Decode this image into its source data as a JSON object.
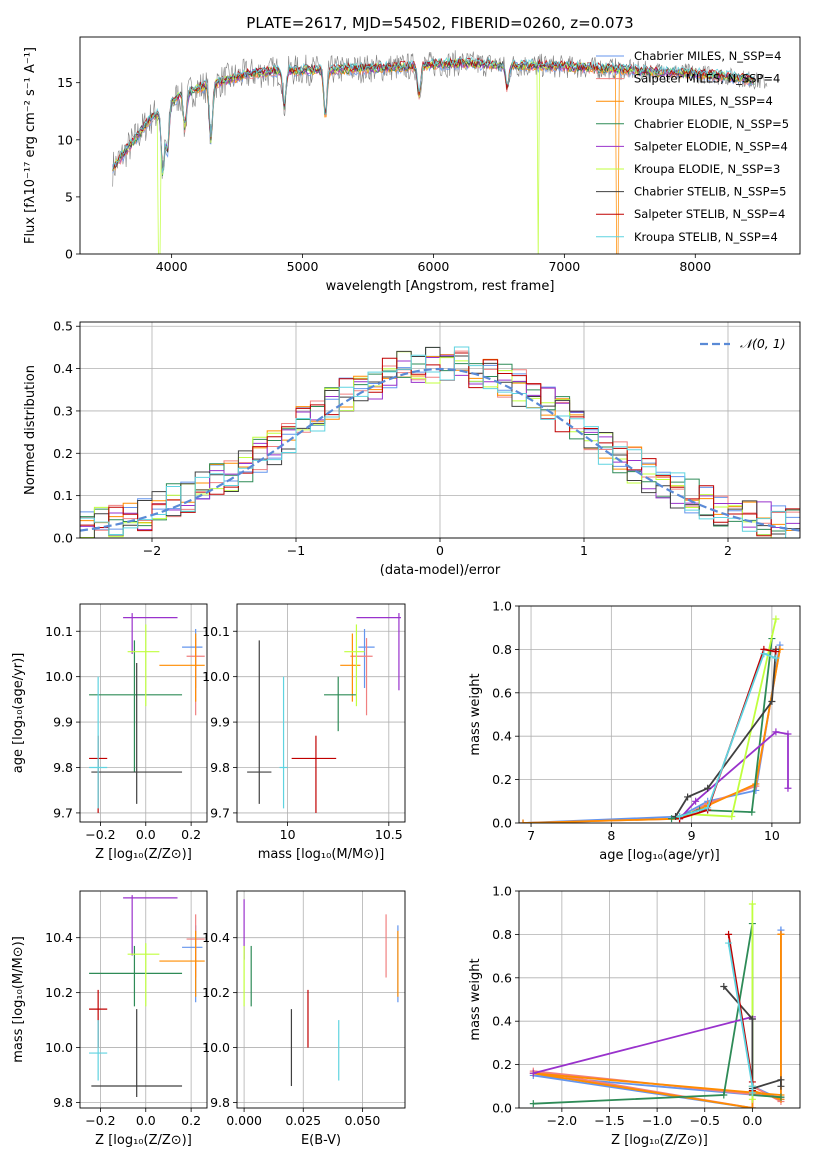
{
  "title": "PLATE=2617, MJD=54502, FIBERID=0260, z=0.073",
  "colors": {
    "chabrier_miles": "#6495ed",
    "salpeter_miles": "#f08080",
    "kroupa_miles": "#ff8c00",
    "chabrier_elodie": "#2e8b57",
    "salpeter_elodie": "#9932cc",
    "kroupa_elodie": "#c0ff3e",
    "chabrier_stelib": "#404040",
    "salpeter_stelib": "#c00000",
    "kroupa_stelib": "#5fd3e0",
    "data": "#808080"
  },
  "chart_data": [
    {
      "id": "spectrum",
      "type": "line",
      "title": "PLATE=2617, MJD=54502, FIBERID=0260, z=0.073",
      "xlabel": "wavelength [Angstrom, rest frame]",
      "ylabel": "Flux [fλ10⁻¹⁷ erg cm⁻² s⁻¹ A⁻¹]",
      "xlim": [
        3300,
        8800
      ],
      "ylim": [
        0,
        19
      ],
      "xticks": [
        4000,
        5000,
        6000,
        7000,
        8000
      ],
      "yticks": [
        0,
        5,
        10,
        15
      ],
      "legend_position": "top-right",
      "legend": [
        "Chabrier MILES, N_SSP=4",
        "Salpeter MILES, N_SSP=4",
        "Kroupa MILES, N_SSP=4",
        "Chabrier ELODIE, N_SSP=5",
        "Salpeter ELODIE, N_SSP=4",
        "Kroupa ELODIE, N_SSP=3",
        "Chabrier STELIB, N_SSP=5",
        "Salpeter STELIB, N_SSP=4",
        "Kroupa STELIB, N_SSP=4"
      ],
      "continuum": {
        "x": [
          3550,
          3650,
          3750,
          3850,
          3950,
          4050,
          4200,
          4400,
          4600,
          4800,
          5000,
          5200,
          5400,
          5600,
          5800,
          6000,
          6200,
          6400,
          6600,
          6800,
          7000,
          7200,
          7400,
          7600,
          7800,
          8000,
          8200,
          8400,
          8550
        ],
        "y": [
          7.5,
          9,
          10.5,
          12,
          12.8,
          13.8,
          14.5,
          15.2,
          15.8,
          16,
          16.1,
          16.1,
          16.2,
          16.3,
          16.4,
          16.6,
          16.7,
          16.6,
          16.5,
          16.5,
          16.4,
          16.3,
          16.2,
          16,
          15.9,
          15.8,
          15.6,
          15.3,
          15
        ]
      },
      "dips": [
        {
          "x": 3933,
          "y": 7
        },
        {
          "x": 3968,
          "y": 9
        },
        {
          "x": 4102,
          "y": 11
        },
        {
          "x": 4300,
          "y": 10
        },
        {
          "x": 4861,
          "y": 13
        },
        {
          "x": 5175,
          "y": 12
        },
        {
          "x": 5890,
          "y": 14
        },
        {
          "x": 6563,
          "y": 14.5
        }
      ],
      "drops": [
        {
          "x": 3905,
          "series": "kroupa_elodie"
        },
        {
          "x": 6800,
          "series": "kroupa_elodie"
        },
        {
          "x": 7405,
          "series": "kroupa_miles"
        }
      ]
    },
    {
      "id": "residuals",
      "type": "histogram",
      "xlabel": "(data-model)/error",
      "ylabel": "Normed distribution",
      "xlim": [
        -2.5,
        2.5
      ],
      "ylim": [
        0,
        0.51
      ],
      "xticks": [
        -2,
        -1,
        0,
        1,
        2
      ],
      "yticks": [
        0.0,
        0.1,
        0.2,
        0.3,
        0.4,
        0.5
      ],
      "bin_width": 0.1,
      "legend": [
        "𝒩(0, 1)"
      ],
      "legend_position": "top-right",
      "gaussian": {
        "mean": 0,
        "sigma": 1
      }
    },
    {
      "id": "age_vs_Z",
      "type": "errorbar",
      "xlabel": "Z [log₁₀(Z/Z⊙)]",
      "ylabel": "age  [log₁₀(age/yr)]",
      "xlim": [
        -0.29,
        0.27
      ],
      "ylim": [
        9.68,
        10.16
      ],
      "xticks": [
        -0.2,
        0.0,
        0.2
      ],
      "xtick_labels": [
        "−0.2",
        "0.0",
        "0.2"
      ],
      "yticks": [
        9.7,
        9.8,
        9.9,
        10.0,
        10.1
      ],
      "points": [
        {
          "series": "chabrier_miles",
          "x": 0.22,
          "xerr": [
            0.06,
            0.03
          ],
          "y": 10.065,
          "yerr": [
            0.09,
            0.04
          ]
        },
        {
          "series": "salpeter_miles",
          "x": 0.22,
          "xerr": [
            0.04,
            0.04
          ],
          "y": 10.045,
          "yerr": [
            0.13,
            0.04
          ]
        },
        {
          "series": "kroupa_miles",
          "x": 0.22,
          "xerr": [
            0.16,
            0.04
          ],
          "y": 10.025,
          "yerr": [
            0.08,
            0.07
          ]
        },
        {
          "series": "chabrier_elodie",
          "x": -0.05,
          "xerr": [
            0.2,
            0.21
          ],
          "y": 9.96,
          "yerr": [
            0.17,
            0.12
          ]
        },
        {
          "series": "salpeter_elodie",
          "x": -0.06,
          "xerr": [
            0.04,
            0.2
          ],
          "y": 10.13,
          "yerr": [
            0.08,
            0.01
          ]
        },
        {
          "series": "kroupa_elodie",
          "x": 0.0,
          "xerr": [
            0.08,
            0.06
          ],
          "y": 10.055,
          "yerr": [
            0.12,
            0.06
          ]
        },
        {
          "series": "chabrier_stelib",
          "x": -0.04,
          "xerr": [
            0.2,
            0.2
          ],
          "y": 9.79,
          "yerr": [
            0.07,
            0.24
          ]
        },
        {
          "series": "salpeter_stelib",
          "x": -0.21,
          "xerr": [
            0.04,
            0.04
          ],
          "y": 9.82,
          "yerr": [
            0.12,
            0.05
          ]
        },
        {
          "series": "kroupa_stelib",
          "x": -0.21,
          "xerr": [
            0.04,
            0.04
          ],
          "y": 9.8,
          "yerr": [
            0.09,
            0.2
          ]
        }
      ]
    },
    {
      "id": "age_vs_mass",
      "type": "errorbar",
      "xlabel": "mass [log₁₀(M/M⊙)]",
      "xlim": [
        9.75,
        10.58
      ],
      "ylim": [
        9.68,
        10.16
      ],
      "xticks": [
        10.0,
        10.5
      ],
      "yticks": [
        9.7,
        9.8,
        9.9,
        10.0,
        10.1
      ],
      "points": [
        {
          "series": "chabrier_miles",
          "x": 10.38,
          "xerr": [
            0.03,
            0.05
          ],
          "y": 10.065,
          "yerr": [
            0.09,
            0.04
          ]
        },
        {
          "series": "salpeter_miles",
          "x": 10.39,
          "xerr": [
            0.08,
            0.03
          ],
          "y": 10.045,
          "yerr": [
            0.13,
            0.04
          ]
        },
        {
          "series": "kroupa_miles",
          "x": 10.32,
          "xerr": [
            0.06,
            0.04
          ],
          "y": 10.025,
          "yerr": [
            0.08,
            0.07
          ]
        },
        {
          "series": "chabrier_elodie",
          "x": 10.25,
          "xerr": [
            0.07,
            0.09
          ],
          "y": 9.96,
          "yerr": [
            0.08,
            0.04
          ]
        },
        {
          "series": "salpeter_elodie",
          "x": 10.55,
          "xerr": [
            0.21,
            0.01
          ],
          "y": 10.13,
          "yerr": [
            0.16,
            0.01
          ]
        },
        {
          "series": "kroupa_elodie",
          "x": 10.34,
          "xerr": [
            0.06,
            0.04
          ],
          "y": 10.055,
          "yerr": [
            0.12,
            0.06
          ]
        },
        {
          "series": "chabrier_stelib",
          "x": 9.86,
          "xerr": [
            0.06,
            0.06
          ],
          "y": 9.79,
          "yerr": [
            0.07,
            0.29
          ]
        },
        {
          "series": "salpeter_stelib",
          "x": 10.14,
          "xerr": [
            0.12,
            0.1
          ],
          "y": 9.82,
          "yerr": [
            0.12,
            0.05
          ]
        },
        {
          "series": "kroupa_stelib",
          "x": 9.98,
          "xerr": [
            0.02,
            0.02
          ],
          "y": 9.8,
          "yerr": [
            0.09,
            0.2
          ]
        }
      ]
    },
    {
      "id": "weight_vs_age",
      "type": "line",
      "xlabel": "age  [log₁₀(age/yr)]",
      "ylabel": "mass weight",
      "xlim": [
        6.85,
        10.35
      ],
      "ylim": [
        0,
        1
      ],
      "xticks": [
        7,
        8,
        9,
        10
      ],
      "yticks": [
        0.0,
        0.2,
        0.4,
        0.6,
        0.8,
        1.0
      ],
      "series": [
        {
          "name": "chabrier_miles",
          "x": [
            6.9,
            8.85,
            9.2,
            9.8,
            10.1
          ],
          "y": [
            0.0,
            0.03,
            0.1,
            0.15,
            0.82
          ]
        },
        {
          "name": "salpeter_miles",
          "x": [
            6.9,
            8.85,
            9.2,
            9.8,
            10.1
          ],
          "y": [
            0.0,
            0.02,
            0.09,
            0.17,
            0.8
          ]
        },
        {
          "name": "kroupa_miles",
          "x": [
            6.9,
            8.85,
            9.2,
            9.8,
            10.1
          ],
          "y": [
            0.0,
            0.02,
            0.08,
            0.18,
            0.8
          ]
        },
        {
          "name": "chabrier_elodie",
          "x": [
            8.75,
            9.1,
            9.75,
            10.0
          ],
          "y": [
            0.02,
            0.06,
            0.05,
            0.85
          ]
        },
        {
          "name": "salpeter_elodie",
          "x": [
            8.85,
            9.05,
            10.05,
            10.2,
            10.2
          ],
          "y": [
            0.02,
            0.1,
            0.42,
            0.41,
            0.16
          ]
        },
        {
          "name": "kroupa_elodie",
          "x": [
            9.0,
            9.5,
            10.05
          ],
          "y": [
            0.04,
            0.03,
            0.94
          ]
        },
        {
          "name": "chabrier_stelib",
          "x": [
            8.8,
            8.95,
            9.2,
            10.0,
            10.05
          ],
          "y": [
            0.03,
            0.12,
            0.16,
            0.56,
            0.8
          ]
        },
        {
          "name": "salpeter_stelib",
          "x": [
            8.85,
            9.2,
            9.9,
            10.05
          ],
          "y": [
            0.02,
            0.06,
            0.8,
            0.79
          ]
        },
        {
          "name": "kroupa_stelib",
          "x": [
            8.85,
            9.2,
            9.9,
            10.05
          ],
          "y": [
            0.03,
            0.07,
            0.78,
            0.76
          ]
        }
      ]
    },
    {
      "id": "mass_vs_Z",
      "type": "errorbar",
      "xlabel": "Z [log₁₀(Z/Z⊙)]",
      "ylabel": "mass [log₁₀(M/M⊙)]",
      "xlim": [
        -0.29,
        0.27
      ],
      "ylim": [
        9.78,
        10.57
      ],
      "xticks": [
        -0.2,
        0.0,
        0.2
      ],
      "xtick_labels": [
        "−0.2",
        "0.0",
        "0.2"
      ],
      "yticks": [
        9.8,
        10.0,
        10.2,
        10.4
      ],
      "points": [
        {
          "series": "chabrier_miles",
          "x": 0.22,
          "xerr": [
            0.06,
            0.03
          ],
          "y": 10.365,
          "yerr": [
            0.2,
            0.08
          ]
        },
        {
          "series": "salpeter_miles",
          "x": 0.22,
          "xerr": [
            0.04,
            0.04
          ],
          "y": 10.395,
          "yerr": [
            0.14,
            0.09
          ]
        },
        {
          "series": "kroupa_miles",
          "x": 0.22,
          "xerr": [
            0.16,
            0.04
          ],
          "y": 10.315,
          "yerr": [
            0.13,
            0.11
          ]
        },
        {
          "series": "chabrier_elodie",
          "x": -0.05,
          "xerr": [
            0.2,
            0.21
          ],
          "y": 10.27,
          "yerr": [
            0.12,
            0.1
          ]
        },
        {
          "series": "salpeter_elodie",
          "x": -0.06,
          "xerr": [
            0.04,
            0.2
          ],
          "y": 10.545,
          "yerr": [
            0.21,
            0.01
          ]
        },
        {
          "series": "kroupa_elodie",
          "x": 0.0,
          "xerr": [
            0.08,
            0.06
          ],
          "y": 10.34,
          "yerr": [
            0.19,
            0.04
          ]
        },
        {
          "series": "chabrier_stelib",
          "x": -0.04,
          "xerr": [
            0.2,
            0.2
          ],
          "y": 9.86,
          "yerr": [
            0.04,
            0.28
          ]
        },
        {
          "series": "salpeter_stelib",
          "x": -0.21,
          "xerr": [
            0.04,
            0.04
          ],
          "y": 10.14,
          "yerr": [
            0.14,
            0.07
          ]
        },
        {
          "series": "kroupa_stelib",
          "x": -0.21,
          "xerr": [
            0.04,
            0.04
          ],
          "y": 9.98,
          "yerr": [
            0.1,
            0.12
          ]
        }
      ]
    },
    {
      "id": "mass_vs_ebv",
      "type": "errorbar",
      "xlabel": "E(B-V)",
      "xlim": [
        -0.003,
        0.068
      ],
      "ylim": [
        9.78,
        10.57
      ],
      "xticks": [
        0.0,
        0.025,
        0.05
      ],
      "xtick_labels": [
        "0.000",
        "0.025",
        "0.050"
      ],
      "yticks": [
        9.8,
        10.0,
        10.2,
        10.4
      ],
      "points": [
        {
          "series": "chabrier_miles",
          "x": 0.065,
          "yerr": [
            0.2,
            0.08
          ],
          "y": 10.365
        },
        {
          "series": "salpeter_miles",
          "x": 0.06,
          "yerr": [
            0.14,
            0.09
          ],
          "y": 10.395
        },
        {
          "series": "kroupa_miles",
          "x": 0.065,
          "yerr": [
            0.13,
            0.11
          ],
          "y": 10.315
        },
        {
          "series": "chabrier_elodie",
          "x": 0.003,
          "yerr": [
            0.12,
            0.1
          ],
          "y": 10.27
        },
        {
          "series": "salpeter_elodie",
          "x": 0.0,
          "yerr": [
            0.15,
            0.07
          ],
          "y": 10.47
        },
        {
          "series": "kroupa_elodie",
          "x": 0.0,
          "yerr": [
            0.12,
            0.1
          ],
          "y": 10.27
        },
        {
          "series": "chabrier_stelib",
          "x": 0.02,
          "yerr": [
            0.14,
            0.14
          ],
          "y": 10.0
        },
        {
          "series": "salpeter_stelib",
          "x": 0.027,
          "yerr": [
            0.14,
            0.07
          ],
          "y": 10.14
        },
        {
          "series": "kroupa_stelib",
          "x": 0.04,
          "yerr": [
            0.1,
            0.12
          ],
          "y": 9.98
        }
      ]
    },
    {
      "id": "weight_vs_Z",
      "type": "line",
      "xlabel": "Z [log₁₀(Z/Z⊙)]",
      "ylabel": "mass weight",
      "xlim": [
        -2.45,
        0.5
      ],
      "ylim": [
        0,
        1
      ],
      "xticks": [
        -2.0,
        -1.5,
        -1.0,
        -0.5,
        0.0
      ],
      "xtick_labels": [
        "−2.0",
        "−1.5",
        "−1.0",
        "−0.5",
        "0.0"
      ],
      "yticks": [
        0.0,
        0.2,
        0.4,
        0.6,
        0.8,
        1.0
      ],
      "series": [
        {
          "name": "chabrier_miles",
          "x": [
            0.3,
            0.3,
            -2.3,
            0.0,
            0.0,
            0.3,
            0.3
          ],
          "y": [
            0.82,
            0.05,
            0.15,
            0.0,
            0.1,
            0.04,
            0.82
          ]
        },
        {
          "name": "salpeter_miles",
          "x": [
            0.3,
            0.3,
            -2.3,
            0.0,
            0.0,
            0.3,
            0.3
          ],
          "y": [
            0.8,
            0.05,
            0.17,
            0.0,
            0.1,
            0.03,
            0.8
          ]
        },
        {
          "name": "kroupa_miles",
          "x": [
            0.3,
            0.3,
            -2.3,
            0.0,
            0.0,
            0.3,
            0.3
          ],
          "y": [
            0.8,
            0.06,
            0.16,
            0.0,
            0.08,
            0.04,
            0.8
          ]
        },
        {
          "name": "chabrier_elodie",
          "x": [
            -2.3,
            -0.3,
            0.0,
            0.0,
            0.3
          ],
          "y": [
            0.02,
            0.06,
            0.85,
            0.06,
            0.05
          ]
        },
        {
          "name": "salpeter_elodie",
          "x": [
            -2.3,
            0.0,
            0.0
          ],
          "y": [
            0.16,
            0.42,
            0.41
          ]
        },
        {
          "name": "kroupa_elodie",
          "x": [
            0.0,
            0.0,
            0.0
          ],
          "y": [
            0.04,
            0.94,
            0.1
          ]
        },
        {
          "name": "chabrier_stelib",
          "x": [
            -0.3,
            0.0,
            0.0,
            0.3,
            0.3
          ],
          "y": [
            0.56,
            0.41,
            0.09,
            0.13,
            0.1
          ]
        },
        {
          "name": "salpeter_stelib",
          "x": [
            -0.25,
            0.0,
            0.0
          ],
          "y": [
            0.8,
            0.12,
            0.08
          ]
        },
        {
          "name": "kroupa_stelib",
          "x": [
            -0.25,
            0.0,
            0.0
          ],
          "y": [
            0.76,
            0.1,
            0.07
          ]
        }
      ]
    }
  ]
}
